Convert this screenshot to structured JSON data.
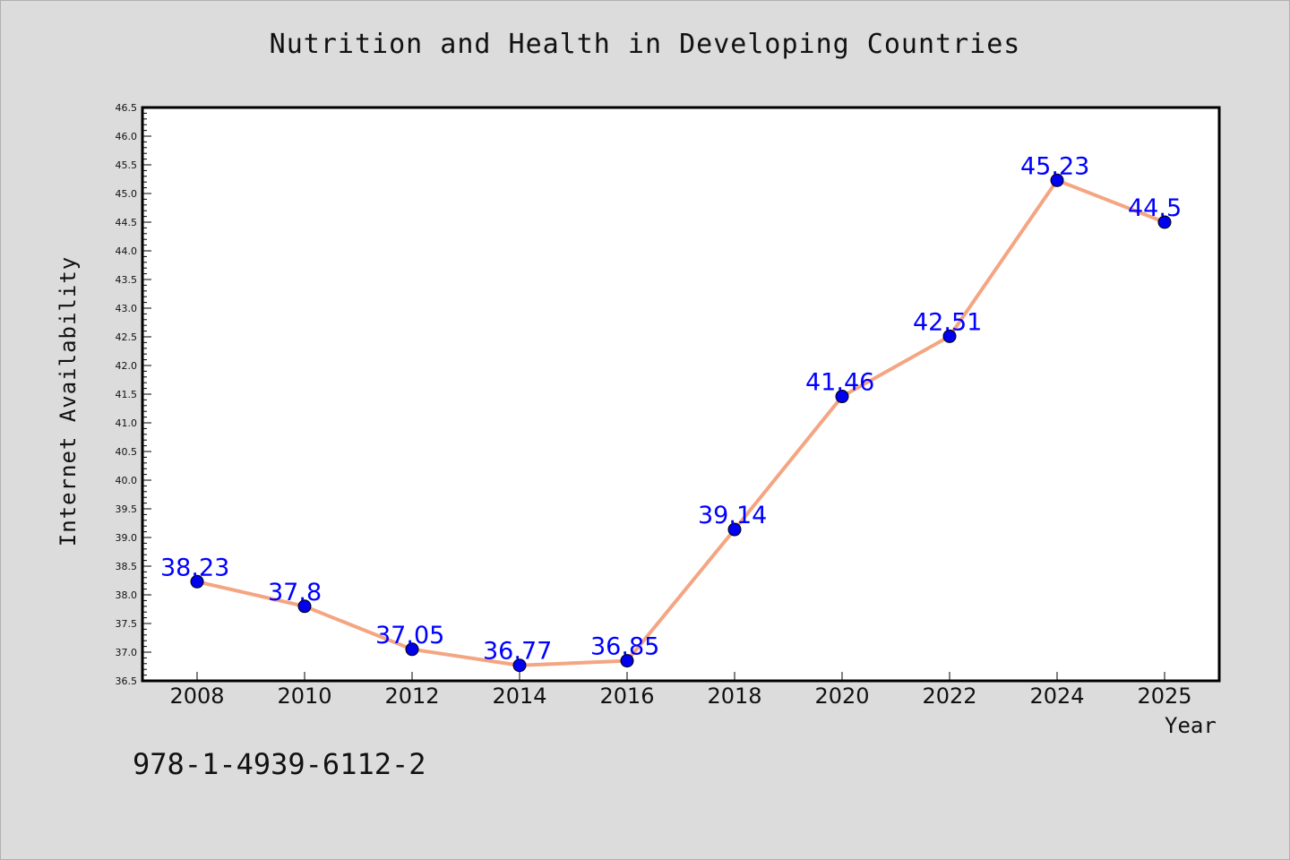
{
  "chart_data": {
    "type": "line",
    "title": "Nutrition and Health in Developing Countries",
    "xlabel": "Year",
    "ylabel": "Internet Availability",
    "annotation": "978-1-4939-6112-2",
    "ylim": [
      36.5,
      46.5
    ],
    "ytick_step": 0.5,
    "yticks": [
      "36.5",
      "37.0",
      "37.5",
      "38.0",
      "38.5",
      "39.0",
      "39.5",
      "40.0",
      "40.5",
      "41.0",
      "41.5",
      "42.0",
      "42.5",
      "43.0",
      "43.5",
      "44.0",
      "44.5",
      "45.0",
      "45.5",
      "46.0",
      "46.5"
    ],
    "categories": [
      "2008",
      "2010",
      "2012",
      "2014",
      "2016",
      "2018",
      "2020",
      "2022",
      "2024",
      "2025"
    ],
    "series": [
      {
        "values": [
          38.23,
          37.8,
          37.05,
          36.77,
          36.85,
          39.14,
          41.46,
          42.51,
          45.23,
          44.5
        ],
        "data_labels": [
          "38.23",
          "37.8",
          "37.05",
          "36.77",
          "36.85",
          "39.14",
          "41.46",
          "42.51",
          "45.23",
          "44.5"
        ],
        "line_color": "#f4a582",
        "marker_color": "#0000ee",
        "label_color": "#0000ff"
      }
    ],
    "grid": false
  }
}
